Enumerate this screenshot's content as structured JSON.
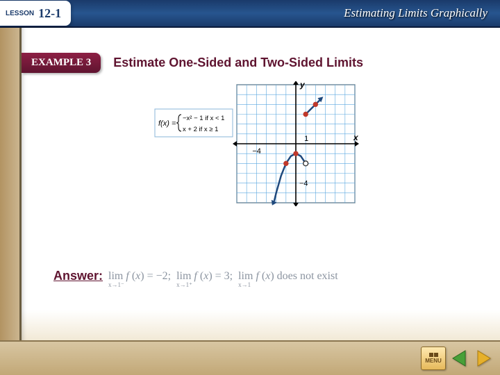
{
  "topbar": {
    "lesson_label": "LESSON",
    "lesson_number": "12-1",
    "title": "Estimating Limits Graphically"
  },
  "example": {
    "badge": "EXAMPLE 3",
    "title": "Estimate One-Sided and Two-Sided Limits"
  },
  "graph": {
    "grid": {
      "xmin": -6,
      "xmax": 6,
      "ymin": -6,
      "ymax": 6,
      "step": 1,
      "size": 170,
      "grid_color": "#5aa7e0",
      "axis_color": "#000000",
      "bg": "#ffffff"
    },
    "x_tick_label": "−4",
    "x_tick_pos": -4,
    "x_axis_label": "x",
    "y_tick_label": "−4",
    "y_tick_pos": -4,
    "y_axis_label": "y",
    "series": [
      {
        "type": "parabola",
        "comment": "y = -x^2 - 1 for x < 1",
        "color": "#1f497d",
        "width": 2.5,
        "points": [
          [
            -2.2,
            -5.84
          ],
          [
            -2.0,
            -5.0
          ],
          [
            -1.5,
            -3.25
          ],
          [
            -1.0,
            -2.0
          ],
          [
            -0.5,
            -1.25
          ],
          [
            0.0,
            -1.0
          ],
          [
            0.5,
            -1.25
          ],
          [
            1.0,
            -2.0
          ]
        ],
        "end_open": {
          "x": 1,
          "y": -2
        },
        "solid_points": [
          {
            "x": -1,
            "y": -2
          },
          {
            "x": 0,
            "y": -1
          }
        ]
      },
      {
        "type": "line",
        "comment": "y = x + 2 for x >= 1",
        "color": "#1f497d",
        "width": 2.5,
        "points": [
          [
            1,
            3
          ],
          [
            2.5,
            4.5
          ]
        ],
        "solid_points": [
          {
            "x": 1,
            "y": 3
          },
          {
            "x": 2,
            "y": 4
          }
        ]
      }
    ],
    "function_box": {
      "lines": [
        "f(x) =",
        "−x² − 1 if x < 1",
        "x + 2 if x ≥ 1"
      ],
      "border": "#8ab4d8"
    }
  },
  "answer": {
    "label": "Answer:",
    "parts": [
      "lim  f (x) = −2;",
      "lim  f (x) = 3;",
      "lim f (x) does not exist"
    ],
    "subs": [
      "x→1⁻",
      "x→1⁺",
      "x→1"
    ]
  },
  "nav": {
    "menu": "MENU",
    "prev_color": "#48a038",
    "next_color": "#e6b02a"
  }
}
